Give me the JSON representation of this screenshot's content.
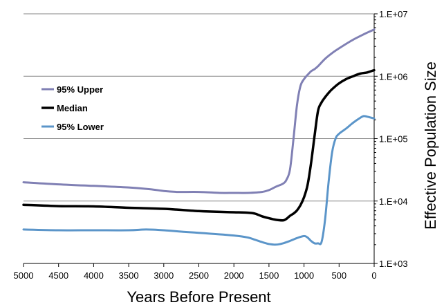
{
  "chart_data": {
    "type": "line",
    "xlabel": "Years Before Present",
    "ylabel": "Effective Population Size",
    "xlim": [
      5000,
      0
    ],
    "ylim": [
      1000,
      10000000
    ],
    "y_scale": "log",
    "y_axis_side": "right",
    "grid": "horizontal",
    "legend_placement": "left",
    "x_ticks": [
      "5000",
      "4500",
      "4000",
      "3500",
      "3000",
      "2500",
      "2000",
      "1500",
      "1000",
      "500",
      "0"
    ],
    "y_ticks": [
      "1.E+03",
      "1.E+04",
      "1.E+05",
      "1.E+06",
      "1.E+07"
    ],
    "x_tick_values": [
      5000,
      4500,
      4000,
      3500,
      3000,
      2500,
      2000,
      1500,
      1000,
      500,
      0
    ],
    "y_tick_values": [
      1000,
      10000,
      100000,
      1000000,
      10000000
    ],
    "series": [
      {
        "name": "95% Upper",
        "color": "#8080b4",
        "width": 3,
        "x": [
          5000,
          4500,
          4000,
          3500,
          3200,
          3000,
          2800,
          2500,
          2200,
          2000,
          1800,
          1600,
          1500,
          1400,
          1300,
          1250,
          1200,
          1150,
          1100,
          1050,
          1000,
          950,
          900,
          850,
          800,
          700,
          600,
          500,
          400,
          300,
          200,
          100,
          0
        ],
        "y": [
          20000,
          18500,
          17500,
          16500,
          15500,
          14500,
          14000,
          14000,
          13500,
          13500,
          13500,
          14000,
          15000,
          17000,
          19000,
          22000,
          32000,
          100000,
          350000,
          700000,
          900000,
          1050000,
          1200000,
          1300000,
          1450000,
          1900000,
          2350000,
          2800000,
          3300000,
          3850000,
          4400000,
          5000000,
          5600000
        ]
      },
      {
        "name": "Median",
        "color": "#000000",
        "width": 3.5,
        "x": [
          5000,
          4500,
          4000,
          3500,
          3000,
          2500,
          2200,
          2000,
          1800,
          1700,
          1600,
          1500,
          1400,
          1300,
          1250,
          1200,
          1150,
          1100,
          1050,
          1000,
          950,
          900,
          850,
          800,
          750,
          700,
          650,
          600,
          500,
          400,
          300,
          200,
          100,
          0
        ],
        "y": [
          8700,
          8300,
          8200,
          7800,
          7500,
          6900,
          6700,
          6600,
          6500,
          6300,
          5700,
          5300,
          5000,
          4900,
          5200,
          5800,
          6300,
          7100,
          8600,
          11500,
          18000,
          40000,
          110000,
          280000,
          380000,
          460000,
          540000,
          620000,
          770000,
          900000,
          1000000,
          1100000,
          1150000,
          1250000
        ]
      },
      {
        "name": "95% Lower",
        "color": "#5b95c9",
        "width": 3,
        "x": [
          5000,
          4500,
          4000,
          3500,
          3250,
          3000,
          2700,
          2500,
          2000,
          1800,
          1700,
          1600,
          1500,
          1400,
          1300,
          1200,
          1100,
          1000,
          950,
          900,
          850,
          800,
          750,
          700,
          650,
          600,
          550,
          500,
          400,
          300,
          200,
          150,
          100,
          0
        ],
        "y": [
          3500,
          3400,
          3400,
          3400,
          3500,
          3400,
          3200,
          3100,
          2800,
          2600,
          2400,
          2200,
          2050,
          2000,
          2100,
          2300,
          2550,
          2750,
          2600,
          2300,
          2100,
          2100,
          2200,
          5000,
          20000,
          60000,
          100000,
          120000,
          145000,
          180000,
          215000,
          230000,
          225000,
          210000
        ]
      }
    ]
  },
  "legend": {
    "items": [
      {
        "label": "95% Upper",
        "color": "#8080b4"
      },
      {
        "label": "Median",
        "color": "#000000"
      },
      {
        "label": "95% Lower",
        "color": "#5b95c9"
      }
    ]
  },
  "colors": {
    "grid": "#868686",
    "axis": "#000000",
    "background": "#ffffff"
  }
}
